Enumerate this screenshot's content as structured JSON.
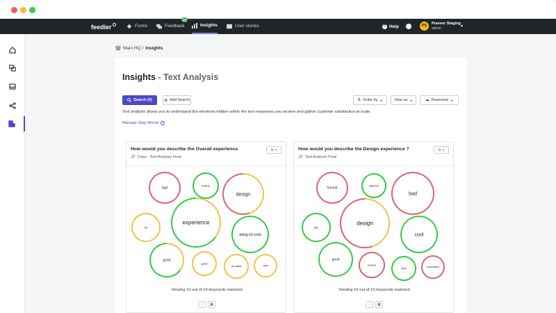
{
  "nav": {
    "logo": "feedier",
    "items": [
      {
        "label": "Forms",
        "icon": "forms-icon"
      },
      {
        "label": "Feedback",
        "icon": "feedback-icon",
        "badge": "99"
      },
      {
        "label": "Insights",
        "icon": "insights-icon",
        "active": true
      },
      {
        "label": "User stories",
        "icon": "user-stories-icon"
      }
    ],
    "help_label": "Help",
    "user": {
      "initials": "PS",
      "name": "Praveer Staging",
      "role": "admin"
    }
  },
  "sidebar": {
    "items": [
      {
        "icon": "home-icon"
      },
      {
        "icon": "chat-icon"
      },
      {
        "icon": "inbox-icon"
      },
      {
        "icon": "integrations-icon"
      },
      {
        "icon": "analytics-icon",
        "active": true
      }
    ]
  },
  "breadcrumb": {
    "parent": "Main HQ /",
    "current": "Insights"
  },
  "page": {
    "title_main": "Insights",
    "title_sub": " - Text Analysis",
    "search_label": "Search (0)",
    "add_search_label": "Add Search",
    "order_by_label": "Order by",
    "view_as_label": "View as",
    "download_label": "Download",
    "description": "Text analysis allows you to understand the emotions hidden within the text responses you receive and gather customer satisfaction at scale.",
    "stop_words_label": "Manage Stop Words"
  },
  "colors": {
    "accent": "#4b48c8",
    "positive": "#2ecc40",
    "negative": "#d9646f",
    "neutral": "#f3c24a"
  },
  "cards": [
    {
      "title": "How would you describe the Overall experience",
      "subtitle": "Copy - Text Analysis Final",
      "viewing": "Viewing 10 out of 10 keywords matched",
      "bubbles": [
        {
          "word": "bad",
          "sentiment": "negative"
        },
        {
          "word": "insane",
          "sentiment": "positive"
        },
        {
          "word": "design",
          "sentiment": "mixed"
        },
        {
          "word": "bit",
          "sentiment": "neutral"
        },
        {
          "word": "experience",
          "sentiment": "mixed-positive"
        },
        {
          "word": "easy-to-use",
          "sentiment": "positive"
        },
        {
          "word": "good",
          "sentiment": "mixed-positive"
        },
        {
          "word": "great",
          "sentiment": "neutral"
        },
        {
          "word": "out-dated",
          "sentiment": "neutral"
        },
        {
          "word": "clear",
          "sentiment": "neutral"
        }
      ]
    },
    {
      "title": "How would you describe the Design experience ?",
      "subtitle": "Text Analysis Final",
      "viewing": "Viewing 10 out of 10 keywords matched",
      "bubbles": [
        {
          "word": "honest",
          "sentiment": "negative"
        },
        {
          "word": "patterns",
          "sentiment": "positive"
        },
        {
          "word": "bad",
          "sentiment": "negative"
        },
        {
          "word": "like",
          "sentiment": "positive"
        },
        {
          "word": "design",
          "sentiment": "mixed"
        },
        {
          "word": "cool",
          "sentiment": "positive"
        },
        {
          "word": "good",
          "sentiment": "positive"
        },
        {
          "word": "looked",
          "sentiment": "negative"
        },
        {
          "word": "style",
          "sentiment": "positive"
        },
        {
          "word": "understand",
          "sentiment": "negative"
        }
      ]
    }
  ]
}
